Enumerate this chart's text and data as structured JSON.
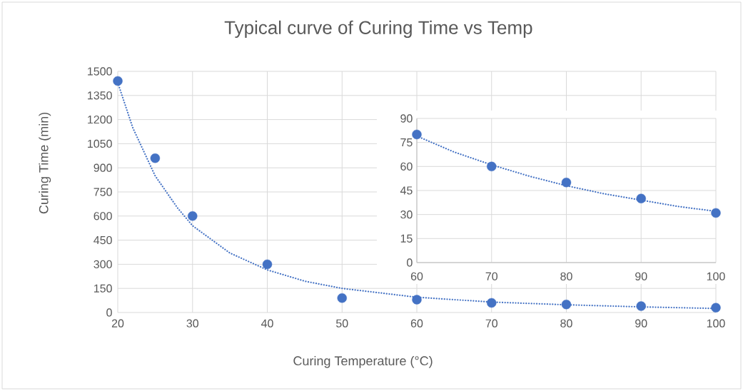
{
  "chart_data": [
    {
      "type": "scatter",
      "title": "Typical curve of Curing Time vs Temp",
      "xlabel": "Curing Temperature (°C)",
      "ylabel": "Curing Time (min)",
      "xlim": [
        20,
        100
      ],
      "ylim": [
        0,
        1500
      ],
      "xticks": [
        20,
        30,
        40,
        50,
        60,
        70,
        80,
        90,
        100
      ],
      "yticks": [
        0,
        150,
        300,
        450,
        600,
        750,
        900,
        1050,
        1200,
        1350,
        1500
      ],
      "grid": true,
      "series": [
        {
          "type": "line",
          "color": "#4472c4",
          "line_style": "dotted",
          "x": [
            20,
            22,
            25,
            28,
            30,
            35,
            40,
            45,
            50,
            60,
            70,
            80,
            90,
            100
          ],
          "values": [
            1430,
            1150,
            850,
            650,
            540,
            370,
            265,
            195,
            150,
            95,
            65,
            48,
            35,
            25
          ]
        },
        {
          "type": "scatter",
          "color": "#4472c4",
          "marker": "circle",
          "x": [
            20,
            25,
            30,
            40,
            50,
            60,
            70,
            80,
            90,
            100
          ],
          "values": [
            1440,
            960,
            600,
            300,
            90,
            80,
            60,
            50,
            40,
            30
          ]
        }
      ]
    },
    {
      "type": "scatter",
      "xlim": [
        60,
        100
      ],
      "ylim": [
        0,
        90
      ],
      "xticks": [
        60,
        70,
        80,
        90,
        100
      ],
      "yticks": [
        0,
        15,
        30,
        45,
        60,
        75,
        90
      ],
      "grid": true,
      "series": [
        {
          "type": "line",
          "color": "#4472c4",
          "line_style": "dotted",
          "x": [
            60,
            65,
            70,
            75,
            80,
            85,
            90,
            95,
            100
          ],
          "values": [
            79,
            69,
            61,
            54,
            48,
            43,
            39,
            35,
            32
          ]
        },
        {
          "type": "scatter",
          "color": "#4472c4",
          "marker": "circle",
          "x": [
            60,
            70,
            80,
            90,
            100
          ],
          "values": [
            80,
            60,
            50,
            40,
            31
          ]
        }
      ]
    }
  ]
}
